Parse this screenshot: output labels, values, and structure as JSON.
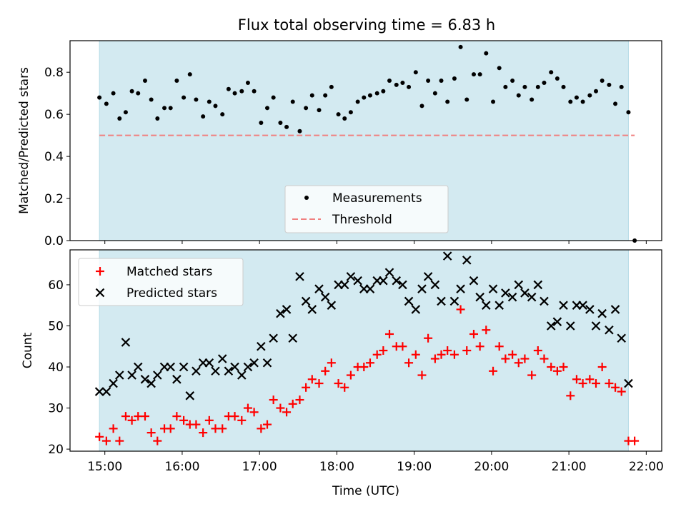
{
  "chart_data": [
    {
      "type": "scatter",
      "title": "Flux total observing time = 6.83 h",
      "ylabel": "Matched/Predicted stars",
      "ylim": [
        0,
        0.95
      ],
      "yticks": [
        0.0,
        0.2,
        0.4,
        0.6,
        0.8
      ],
      "ytick_labels": [
        "0.0",
        "0.2",
        "0.4",
        "0.6",
        "0.8"
      ],
      "xlim": [
        14.55,
        22.2
      ],
      "shaded_span": [
        14.93,
        21.77
      ],
      "shade_color": "#d3eaf1",
      "threshold": {
        "name": "Threshold",
        "value": 0.5,
        "x_range": [
          14.93,
          21.85
        ],
        "color": "#f08080"
      },
      "legend": {
        "placement": "lower-center",
        "entries": [
          "Measurements",
          "Threshold"
        ]
      },
      "series": [
        {
          "name": "Measurements",
          "marker": "dot",
          "color": "#000000",
          "x": [
            14.93,
            15.02,
            15.11,
            15.19,
            15.27,
            15.35,
            15.43,
            15.52,
            15.6,
            15.68,
            15.77,
            15.85,
            15.93,
            16.02,
            16.1,
            16.18,
            16.27,
            16.35,
            16.43,
            16.52,
            16.6,
            16.68,
            16.77,
            16.85,
            16.93,
            17.02,
            17.1,
            17.18,
            17.27,
            17.35,
            17.43,
            17.52,
            17.6,
            17.68,
            17.77,
            17.85,
            17.93,
            18.02,
            18.1,
            18.18,
            18.27,
            18.35,
            18.43,
            18.52,
            18.6,
            18.68,
            18.77,
            18.85,
            18.93,
            19.02,
            19.1,
            19.18,
            19.27,
            19.35,
            19.43,
            19.52,
            19.6,
            19.68,
            19.77,
            19.85,
            19.93,
            20.02,
            20.1,
            20.18,
            20.27,
            20.35,
            20.43,
            20.52,
            20.6,
            20.68,
            20.77,
            20.85,
            20.93,
            21.02,
            21.1,
            21.18,
            21.27,
            21.35,
            21.43,
            21.52,
            21.6,
            21.68,
            21.77,
            21.85
          ],
          "y": [
            0.68,
            0.65,
            0.7,
            0.58,
            0.61,
            0.71,
            0.7,
            0.76,
            0.67,
            0.58,
            0.63,
            0.63,
            0.76,
            0.68,
            0.79,
            0.67,
            0.59,
            0.66,
            0.64,
            0.6,
            0.72,
            0.7,
            0.71,
            0.75,
            0.71,
            0.56,
            0.63,
            0.68,
            0.56,
            0.54,
            0.66,
            0.52,
            0.63,
            0.69,
            0.62,
            0.69,
            0.73,
            0.6,
            0.58,
            0.61,
            0.66,
            0.68,
            0.69,
            0.7,
            0.71,
            0.76,
            0.74,
            0.75,
            0.73,
            0.8,
            0.64,
            0.76,
            0.7,
            0.76,
            0.66,
            0.77,
            0.92,
            0.67,
            0.79,
            0.79,
            0.89,
            0.66,
            0.82,
            0.73,
            0.76,
            0.69,
            0.73,
            0.67,
            0.73,
            0.75,
            0.8,
            0.77,
            0.73,
            0.66,
            0.68,
            0.66,
            0.69,
            0.71,
            0.76,
            0.74,
            0.65,
            0.73,
            0.61,
            0.0
          ]
        }
      ]
    },
    {
      "type": "scatter",
      "xlabel": "Time (UTC)",
      "ylabel": "Count",
      "ylim": [
        19.5,
        68.5
      ],
      "yticks": [
        20,
        30,
        40,
        50,
        60
      ],
      "ytick_labels": [
        "20",
        "30",
        "40",
        "50",
        "60"
      ],
      "xlim": [
        14.55,
        22.2
      ],
      "xticks": [
        15,
        16,
        17,
        18,
        19,
        20,
        21,
        22
      ],
      "xtick_labels": [
        "15:00",
        "16:00",
        "17:00",
        "18:00",
        "19:00",
        "20:00",
        "21:00",
        "22:00"
      ],
      "shaded_span": [
        14.93,
        21.77
      ],
      "shade_color": "#d3eaf1",
      "legend": {
        "placement": "upper-left",
        "entries": [
          "Matched stars",
          "Predicted stars"
        ]
      },
      "series": [
        {
          "name": "Matched stars",
          "marker": "plus",
          "color": "#ff0000",
          "x": [
            14.93,
            15.02,
            15.11,
            15.19,
            15.27,
            15.35,
            15.43,
            15.52,
            15.6,
            15.68,
            15.77,
            15.85,
            15.93,
            16.02,
            16.1,
            16.18,
            16.27,
            16.35,
            16.43,
            16.52,
            16.6,
            16.68,
            16.77,
            16.85,
            16.93,
            17.02,
            17.1,
            17.18,
            17.27,
            17.35,
            17.43,
            17.52,
            17.6,
            17.68,
            17.77,
            17.85,
            17.93,
            18.02,
            18.1,
            18.18,
            18.27,
            18.35,
            18.43,
            18.52,
            18.6,
            18.68,
            18.77,
            18.85,
            18.93,
            19.02,
            19.1,
            19.18,
            19.27,
            19.35,
            19.43,
            19.52,
            19.6,
            19.68,
            19.77,
            19.85,
            19.93,
            20.02,
            20.1,
            20.18,
            20.27,
            20.35,
            20.43,
            20.52,
            20.6,
            20.68,
            20.77,
            20.85,
            20.93,
            21.02,
            21.1,
            21.18,
            21.27,
            21.35,
            21.43,
            21.52,
            21.6,
            21.68,
            21.77,
            21.85
          ],
          "y": [
            23,
            22,
            25,
            22,
            28,
            27,
            28,
            28,
            24,
            22,
            25,
            25,
            28,
            27,
            26,
            26,
            24,
            27,
            25,
            25,
            28,
            28,
            27,
            30,
            29,
            25,
            26,
            32,
            30,
            29,
            31,
            32,
            35,
            37,
            36,
            39,
            41,
            36,
            35,
            38,
            40,
            40,
            41,
            43,
            44,
            48,
            45,
            45,
            41,
            43,
            38,
            47,
            42,
            43,
            44,
            43,
            54,
            44,
            48,
            45,
            49,
            39,
            45,
            42,
            43,
            41,
            42,
            38,
            44,
            42,
            40,
            39,
            40,
            33,
            37,
            36,
            37,
            36,
            40,
            36,
            35,
            34,
            22,
            22
          ]
        },
        {
          "name": "Predicted stars",
          "marker": "x",
          "color": "#000000",
          "x": [
            14.93,
            15.02,
            15.11,
            15.19,
            15.27,
            15.35,
            15.43,
            15.52,
            15.6,
            15.68,
            15.77,
            15.85,
            15.93,
            16.02,
            16.1,
            16.18,
            16.27,
            16.35,
            16.43,
            16.52,
            16.6,
            16.68,
            16.77,
            16.85,
            16.93,
            17.02,
            17.1,
            17.18,
            17.27,
            17.35,
            17.43,
            17.52,
            17.6,
            17.68,
            17.77,
            17.85,
            17.93,
            18.02,
            18.1,
            18.18,
            18.27,
            18.35,
            18.43,
            18.52,
            18.6,
            18.68,
            18.77,
            18.85,
            18.93,
            19.02,
            19.1,
            19.18,
            19.27,
            19.35,
            19.43,
            19.52,
            19.6,
            19.68,
            19.77,
            19.85,
            19.93,
            20.02,
            20.1,
            20.18,
            20.27,
            20.35,
            20.43,
            20.52,
            20.6,
            20.68,
            20.77,
            20.85,
            20.93,
            21.02,
            21.1,
            21.18,
            21.27,
            21.35,
            21.43,
            21.52,
            21.6,
            21.68,
            21.77
          ],
          "y": [
            34,
            34,
            36,
            38,
            46,
            38,
            40,
            37,
            36,
            38,
            40,
            40,
            37,
            40,
            33,
            39,
            41,
            41,
            39,
            42,
            39,
            40,
            38,
            40,
            41,
            45,
            41,
            47,
            53,
            54,
            47,
            62,
            56,
            54,
            59,
            57,
            55,
            60,
            60,
            62,
            61,
            59,
            59,
            61,
            61,
            63,
            61,
            60,
            56,
            54,
            59,
            62,
            60,
            56,
            67,
            56,
            59,
            66,
            61,
            57,
            55,
            59,
            55,
            58,
            57,
            60,
            58,
            57,
            60,
            56,
            50,
            51,
            55,
            50,
            55,
            55,
            54,
            50,
            53,
            49,
            54,
            47,
            36
          ]
        }
      ]
    }
  ]
}
